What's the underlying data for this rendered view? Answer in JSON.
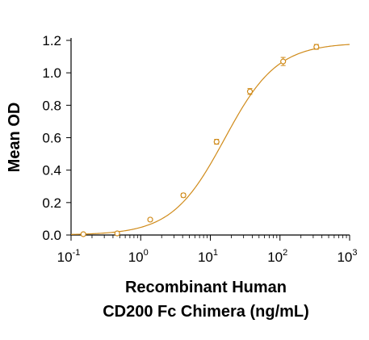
{
  "chart_data": {
    "type": "scatter",
    "title": "",
    "xlabel_lines": [
      "Recombinant Human",
      "CD200 Fc Chimera (ng/mL)"
    ],
    "ylabel": "Mean OD",
    "x_scale": "log",
    "xlim": [
      0.1,
      1000
    ],
    "ylim": [
      0,
      1.2
    ],
    "x_ticks": [
      {
        "base": "10",
        "exp": "-1"
      },
      {
        "base": "10",
        "exp": "0"
      },
      {
        "base": "10",
        "exp": "1"
      },
      {
        "base": "10",
        "exp": "2"
      },
      {
        "base": "10",
        "exp": "3"
      }
    ],
    "y_ticks": [
      "0.0",
      "0.2",
      "0.4",
      "0.6",
      "0.8",
      "1.0",
      "1.2"
    ],
    "grid": false,
    "color": "#d08b1a",
    "series": [
      {
        "points": [
          {
            "x": 0.15,
            "y": 0.005,
            "err": 0.008
          },
          {
            "x": 0.46,
            "y": 0.01,
            "err": 0.006
          },
          {
            "x": 1.37,
            "y": 0.095,
            "err": 0.006
          },
          {
            "x": 4.1,
            "y": 0.245,
            "err": 0.012
          },
          {
            "x": 12.3,
            "y": 0.575,
            "err": 0.015
          },
          {
            "x": 37,
            "y": 0.885,
            "err": 0.018
          },
          {
            "x": 111,
            "y": 1.07,
            "err": 0.025
          },
          {
            "x": 333,
            "y": 1.16,
            "err": 0.015
          }
        ],
        "fit": {
          "bottom": 0.0,
          "top": 1.185,
          "ec50": 16,
          "hill": 1.15
        }
      }
    ]
  }
}
